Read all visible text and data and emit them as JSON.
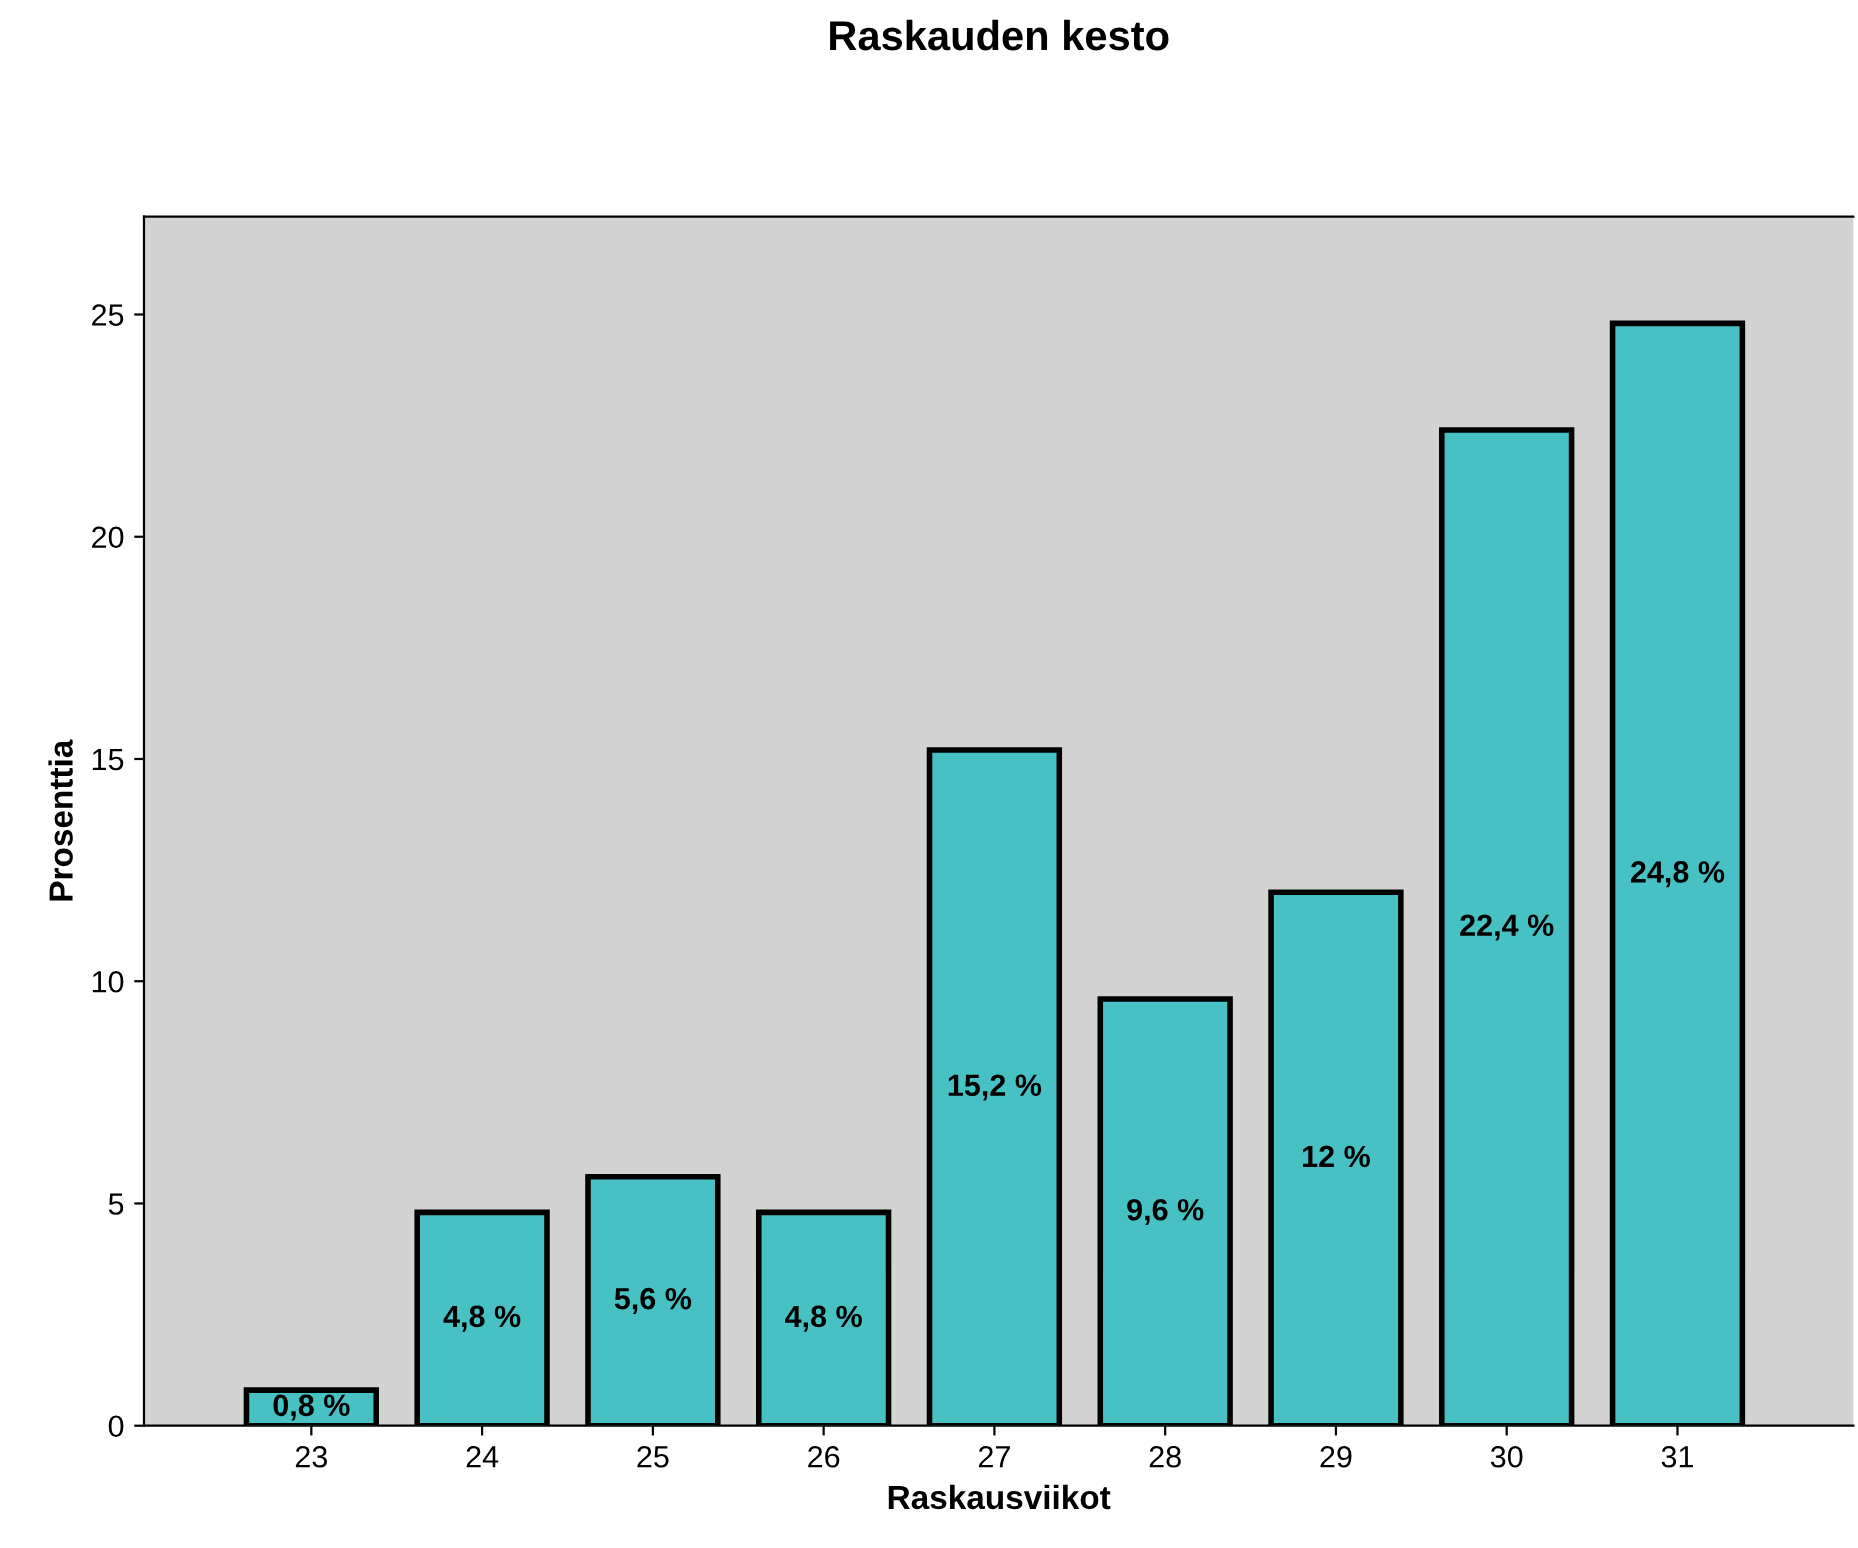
{
  "chart_data": {
    "type": "bar",
    "title": "Raskauden kesto",
    "xlabel": "Raskausviikot",
    "ylabel": "Prosenttia",
    "categories": [
      "23",
      "24",
      "25",
      "26",
      "27",
      "28",
      "29",
      "30",
      "31"
    ],
    "values": [
      0.8,
      4.8,
      5.6,
      4.8,
      15.2,
      9.6,
      12,
      22.4,
      24.8
    ],
    "value_labels": [
      "0,8 %",
      "4,8 %",
      "5,6 %",
      "4,8 %",
      "15,2 %",
      "9,6 %",
      "12 %",
      "22,4 %",
      "24,8 %"
    ],
    "color": "#47c1c4",
    "ylim": [
      0,
      27.2
    ],
    "yticks": [
      0,
      5,
      10,
      15,
      20,
      25
    ],
    "grid": false
  }
}
